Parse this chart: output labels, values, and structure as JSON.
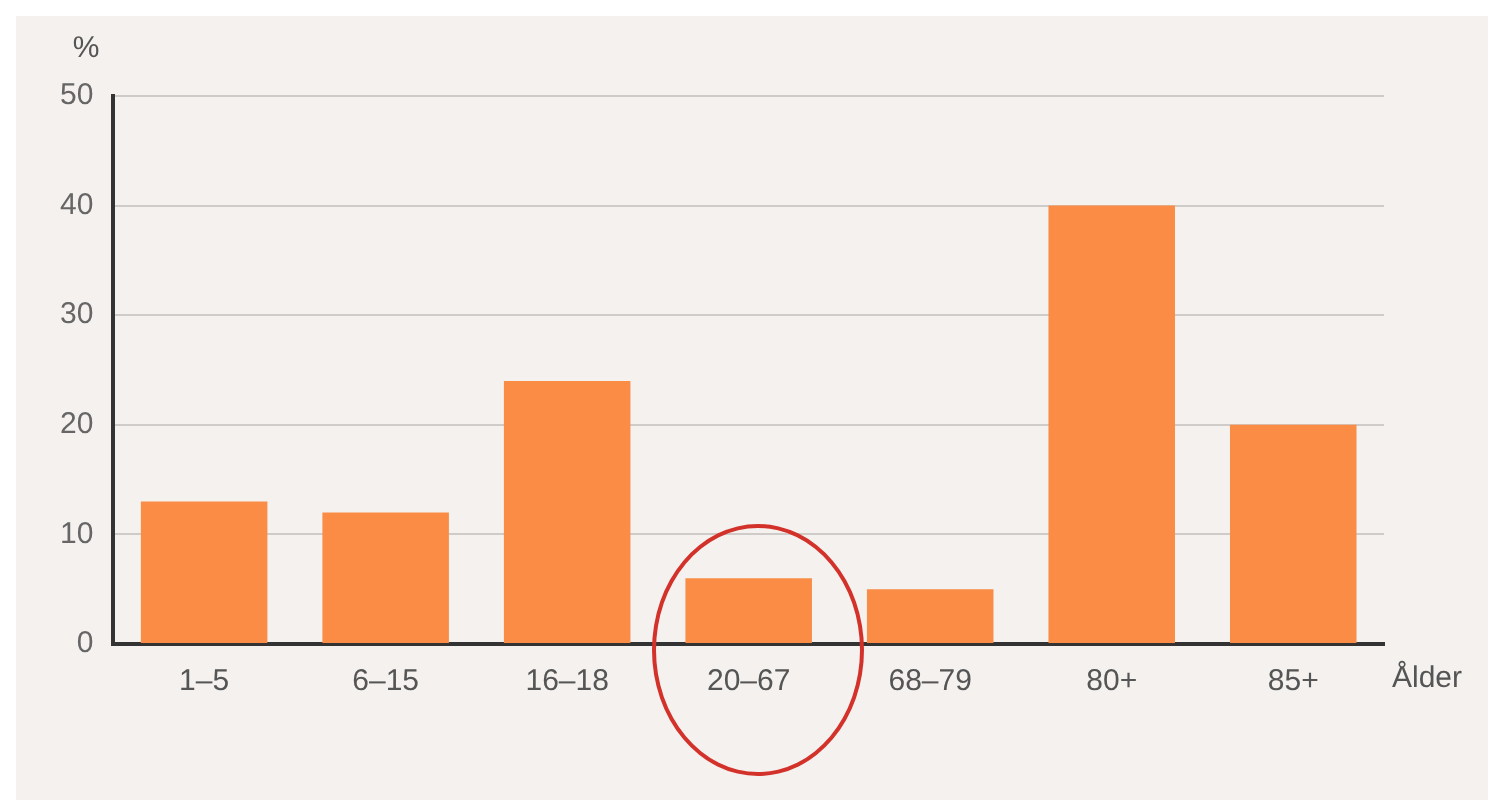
{
  "chart_data": {
    "type": "bar",
    "ylabel": "%",
    "xlabel": "Ålder",
    "categories": [
      "1–5",
      "6–15",
      "16–18",
      "20–67",
      "68–79",
      "80+",
      "85+"
    ],
    "values": [
      13,
      12,
      24,
      6,
      5,
      40,
      20
    ],
    "color": "#fa8c46",
    "ylim": [
      0,
      50
    ],
    "yticks": [
      0,
      10,
      20,
      30,
      40,
      50
    ],
    "grid": "y"
  }
}
